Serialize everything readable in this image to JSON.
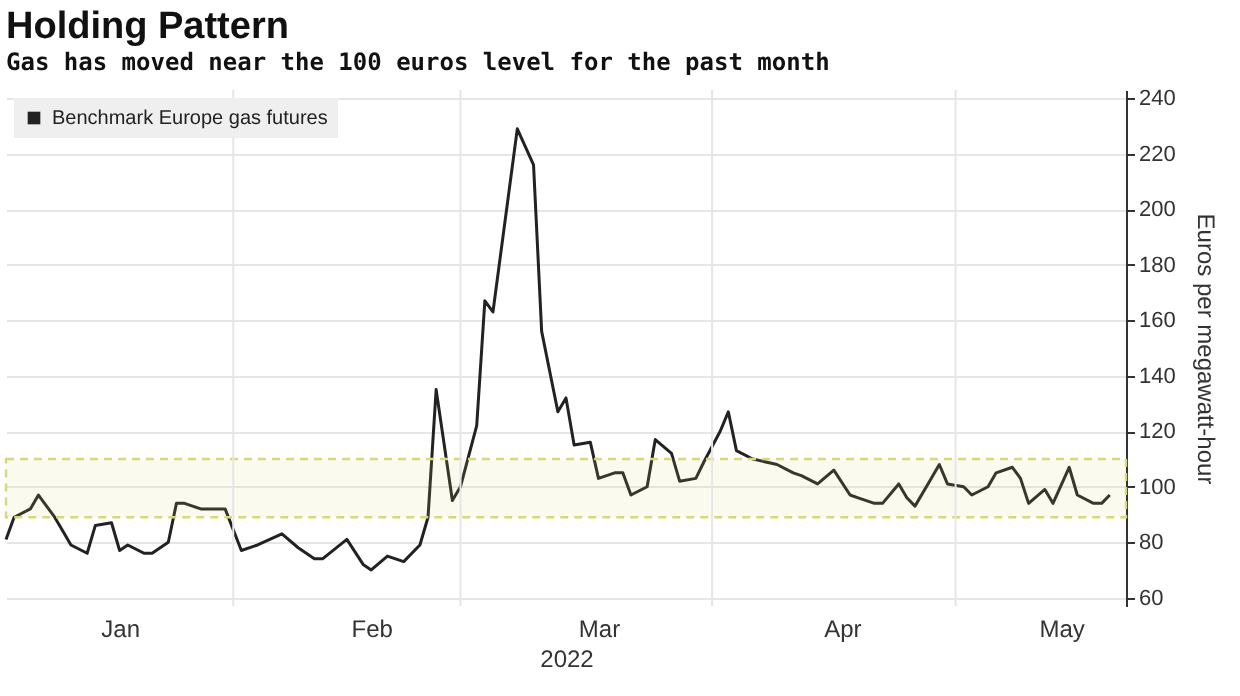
{
  "chart_data": {
    "type": "line",
    "title": "Holding Pattern",
    "subtitle": "Gas has moved near the 100 euros level for the past month",
    "xlabel": "2022",
    "ylabel": "Euros per megawatt-hour",
    "x": [
      "2022-01-04",
      "2022-01-05",
      "2022-01-07",
      "2022-01-08",
      "2022-01-10",
      "2022-01-11",
      "2022-01-12",
      "2022-01-14",
      "2022-01-15",
      "2022-01-17",
      "2022-01-18",
      "2022-01-19",
      "2022-01-21",
      "2022-01-22",
      "2022-01-24",
      "2022-01-25",
      "2022-01-26",
      "2022-01-28",
      "2022-01-31",
      "2022-02-02",
      "2022-02-04",
      "2022-02-07",
      "2022-02-09",
      "2022-02-11",
      "2022-02-12",
      "2022-02-15",
      "2022-02-17",
      "2022-02-18",
      "2022-02-20",
      "2022-02-21",
      "2022-02-22",
      "2022-02-24",
      "2022-02-25",
      "2022-02-26",
      "2022-02-28",
      "2022-03-01",
      "2022-03-03",
      "2022-03-04",
      "2022-03-05",
      "2022-03-08",
      "2022-03-10",
      "2022-03-11",
      "2022-03-13",
      "2022-03-14",
      "2022-03-15",
      "2022-03-17",
      "2022-03-18",
      "2022-03-20",
      "2022-03-21",
      "2022-03-22",
      "2022-03-24",
      "2022-03-25",
      "2022-03-27",
      "2022-03-28",
      "2022-03-30",
      "2022-03-31",
      "2022-04-02",
      "2022-04-03",
      "2022-04-04",
      "2022-04-06",
      "2022-04-09",
      "2022-04-11",
      "2022-04-12",
      "2022-04-14",
      "2022-04-16",
      "2022-04-18",
      "2022-04-19",
      "2022-04-21",
      "2022-04-22",
      "2022-04-24",
      "2022-04-25",
      "2022-04-26",
      "2022-04-28",
      "2022-04-29",
      "2022-04-30",
      "2022-05-02",
      "2022-05-03",
      "2022-05-05",
      "2022-05-06",
      "2022-05-08",
      "2022-05-09",
      "2022-05-10",
      "2022-05-12",
      "2022-05-13",
      "2022-05-15",
      "2022-05-16",
      "2022-05-18",
      "2022-05-19",
      "2022-05-20"
    ],
    "series": [
      {
        "name": "Benchmark Europe gas futures",
        "color": "#222222",
        "values": [
          81,
          89,
          92,
          97,
          89,
          84,
          79,
          76,
          86,
          87,
          77,
          79,
          76,
          76,
          80,
          94,
          94,
          92,
          92,
          77,
          79,
          83,
          78,
          74,
          74,
          81,
          72,
          70,
          75,
          74,
          73,
          79,
          89,
          135,
          95,
          100,
          122,
          167,
          163,
          229,
          216,
          156,
          127,
          132,
          115,
          116,
          103,
          105,
          105,
          97,
          100,
          117,
          112,
          102,
          103,
          109,
          120,
          127,
          113,
          110,
          108,
          105,
          104,
          101,
          106,
          97,
          96,
          94,
          94,
          101,
          96,
          93,
          103,
          108,
          101,
          100,
          97,
          100,
          105,
          107,
          103,
          94,
          99,
          94,
          107,
          97,
          94,
          94,
          97
        ]
      }
    ],
    "xlim": [
      "2022-01-04",
      "2022-05-22"
    ],
    "xticks": [
      {
        "value": "2022-01-18",
        "label": "Jan"
      },
      {
        "value": "2022-02-01",
        "label": null
      },
      {
        "value": "2022-02-18",
        "label": "Feb"
      },
      {
        "value": "2022-03-01",
        "label": null
      },
      {
        "value": "2022-03-18",
        "label": "Mar"
      },
      {
        "value": "2022-04-01",
        "label": null
      },
      {
        "value": "2022-04-17",
        "label": "Apr"
      },
      {
        "value": "2022-05-01",
        "label": null
      },
      {
        "value": "2022-05-14",
        "label": "May"
      }
    ],
    "ylim": [
      57,
      243
    ],
    "yticks": [
      60,
      80,
      100,
      120,
      140,
      160,
      180,
      200,
      220,
      240
    ],
    "bands": [
      {
        "axis": "y",
        "from": 89,
        "to": 110,
        "color": "#d6d97a"
      }
    ],
    "grid": true,
    "legend": "top left"
  }
}
